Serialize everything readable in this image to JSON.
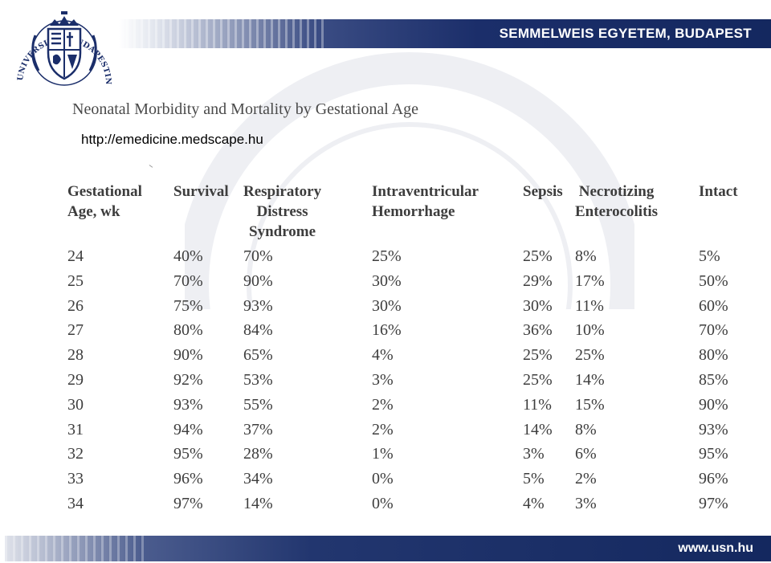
{
  "header": {
    "institution_title": "SEMMELWEIS EGYETEM, BUDAPEST",
    "seal_text": "UNIVERSITAS BUDAPESTINENSIS DE SEMMELWEIS NOMINATA"
  },
  "document": {
    "title": "Neonatal Morbidity and Mortality by Gestational Age",
    "source_url": "http://emedicine.medscape.hu"
  },
  "table": {
    "headers": [
      [
        "Gestational",
        "Age, wk"
      ],
      [
        "Survival"
      ],
      [
        "Respiratory",
        "Distress",
        "Syndrome"
      ],
      [
        "Intraventricular",
        "Hemorrhage"
      ],
      [
        "Sepsis"
      ],
      [
        "Necrotizing",
        "Enterocolitis"
      ],
      [
        "Intact"
      ]
    ],
    "rows": [
      [
        "24",
        "40%",
        "70%",
        "25%",
        "25%",
        "8%",
        "5%"
      ],
      [
        "25",
        "70%",
        "90%",
        "30%",
        "29%",
        "17%",
        "50%"
      ],
      [
        "26",
        "75%",
        "93%",
        "30%",
        "30%",
        "11%",
        "60%"
      ],
      [
        "27",
        "80%",
        "84%",
        "16%",
        "36%",
        "10%",
        "70%"
      ],
      [
        "28",
        "90%",
        "65%",
        "4%",
        "25%",
        "25%",
        "80%"
      ],
      [
        "29",
        "92%",
        "53%",
        "3%",
        "25%",
        "14%",
        "85%"
      ],
      [
        "30",
        "93%",
        "55%",
        "2%",
        "11%",
        "15%",
        "90%"
      ],
      [
        "31",
        "94%",
        "37%",
        "2%",
        "14%",
        "8%",
        "93%"
      ],
      [
        "32",
        "95%",
        "28%",
        "1%",
        "3%",
        "6%",
        "95%"
      ],
      [
        "33",
        "96%",
        "34%",
        "0%",
        "5%",
        "2%",
        "96%"
      ],
      [
        "34",
        "97%",
        "14%",
        "0%",
        "4%",
        "3%",
        "97%"
      ]
    ]
  },
  "footer": {
    "url": "www.usn.hu"
  },
  "colors": {
    "band_dark": "#14285f",
    "band_mid": "#3b4d84",
    "text": "#3d3d3d"
  }
}
